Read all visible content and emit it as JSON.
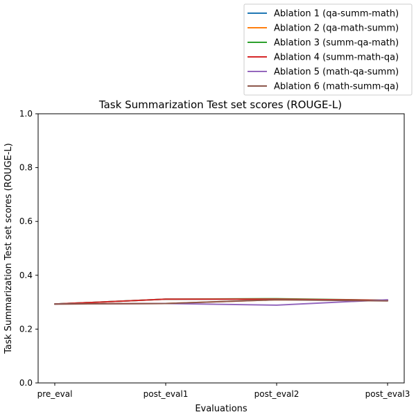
{
  "chart_data": {
    "type": "line",
    "title": "Task Summarization Test set scores (ROUGE-L)",
    "xlabel": "Evaluations",
    "ylabel": "Task Summarization Test set scores (ROUGE-L)",
    "categories": [
      "pre_eval",
      "post_eval1",
      "post_eval2",
      "post_eval3"
    ],
    "ylim": [
      0,
      1
    ],
    "yticks": [
      "0.0",
      "0.2",
      "0.4",
      "0.6",
      "0.8",
      "1.0"
    ],
    "legend_position": "top-right",
    "grid": false,
    "series": [
      {
        "name": "Ablation 1 (qa-summ-math)",
        "color": "#1f77b4",
        "values": [
          0.293,
          0.311,
          0.311,
          0.307
        ]
      },
      {
        "name": "Ablation 2 (qa-math-summ)",
        "color": "#ff7f0e",
        "values": [
          0.293,
          0.295,
          0.309,
          0.307
        ]
      },
      {
        "name": "Ablation 3 (summ-qa-math)",
        "color": "#2ca02c",
        "values": [
          0.293,
          0.311,
          0.313,
          0.307
        ]
      },
      {
        "name": "Ablation 4 (summ-math-qa)",
        "color": "#d62728",
        "values": [
          0.293,
          0.311,
          0.311,
          0.307
        ]
      },
      {
        "name": "Ablation 5 (math-qa-summ)",
        "color": "#9467bd",
        "values": [
          0.293,
          0.295,
          0.289,
          0.309
        ]
      },
      {
        "name": "Ablation 6 (math-summ-qa)",
        "color": "#8c564b",
        "values": [
          0.293,
          0.295,
          0.309,
          0.305
        ]
      }
    ]
  }
}
